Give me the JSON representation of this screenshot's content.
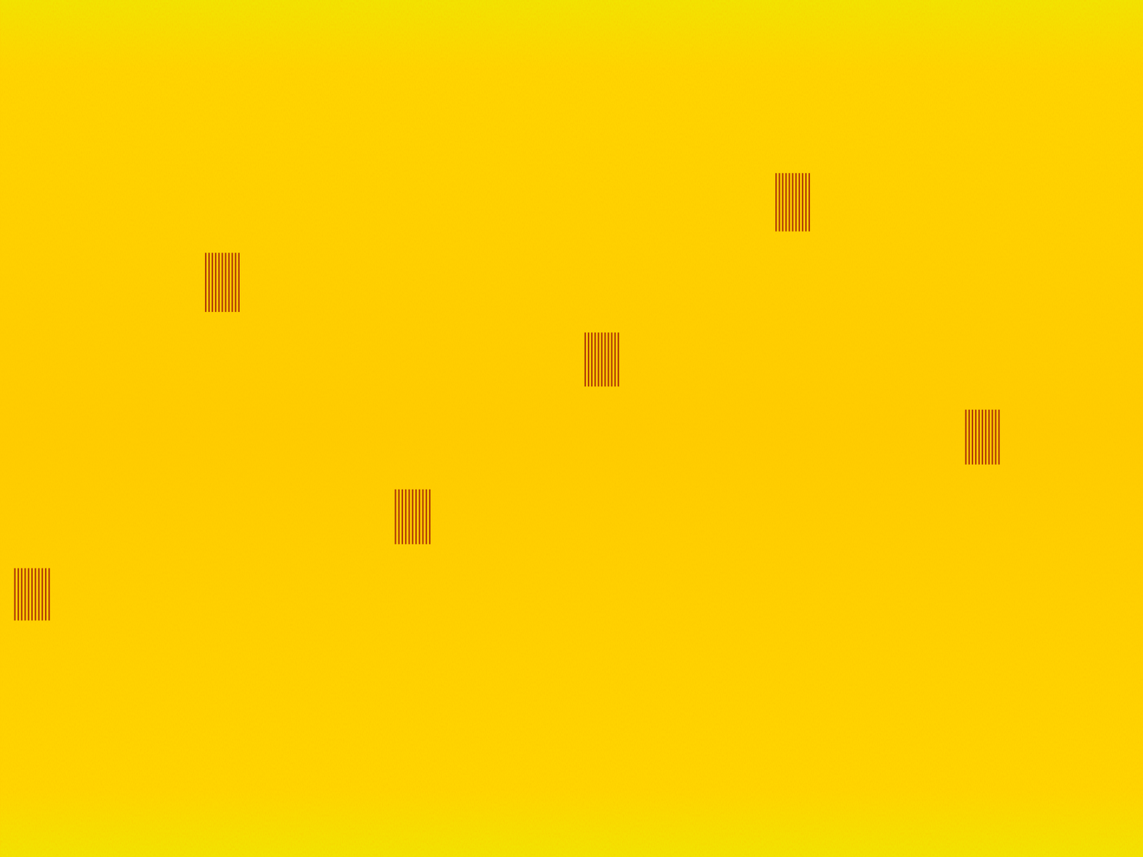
{
  "chart_data": {
    "type": "spectrogram",
    "xlim": [
      0,
      1
    ],
    "ylim": [
      0,
      1
    ],
    "tick_labels": false,
    "color": "#a01a08",
    "carrier": 0.504,
    "bursts": [
      {
        "start": 0.013,
        "end": 0.043,
        "low": 0.276,
        "high": 0.337,
        "pulses": 11
      },
      {
        "start": 0.18,
        "end": 0.209,
        "low": 0.636,
        "high": 0.705,
        "pulses": 11
      },
      {
        "start": 0.346,
        "end": 0.376,
        "low": 0.365,
        "high": 0.429,
        "pulses": 11
      },
      {
        "start": 0.512,
        "end": 0.541,
        "low": 0.549,
        "high": 0.612,
        "pulses": 11
      },
      {
        "start": 0.679,
        "end": 0.708,
        "low": 0.73,
        "high": 0.798,
        "pulses": 11
      },
      {
        "start": 0.845,
        "end": 0.874,
        "low": 0.458,
        "high": 0.522,
        "pulses": 11
      }
    ]
  }
}
